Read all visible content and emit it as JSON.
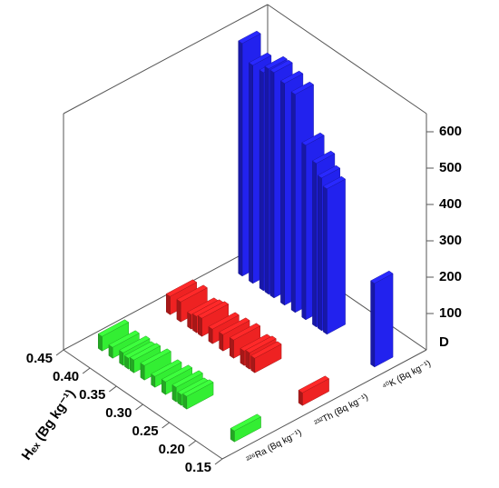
{
  "chart_data": {
    "type": "bar3d",
    "x_label": "Hₑₓ (Bg kg⁻¹)",
    "z_label": "D",
    "x": [
      0.17,
      0.26,
      0.27,
      0.28,
      0.3,
      0.32,
      0.34,
      0.36,
      0.37,
      0.38,
      0.4,
      0.42
    ],
    "xlim": [
      0.15,
      0.45
    ],
    "xticks": [
      0.15,
      {
        "value": 0.2,
        "label": "0.20"
      },
      0.25,
      {
        "value": 0.3,
        "label": "0.30"
      },
      0.35,
      {
        "value": 0.4,
        "label": "0.40"
      },
      0.45
    ],
    "zlim": [
      0,
      650
    ],
    "zticks": [
      100,
      200,
      300,
      400,
      500,
      600
    ],
    "series": [
      {
        "name": "²²⁶Ra (Bq kg⁻¹)",
        "color": "#33ee33",
        "values": [
          30,
          35,
          30,
          40,
          35,
          30,
          40,
          35,
          30,
          35,
          30,
          40
        ]
      },
      {
        "name": "²³²Th (Bq kg⁻¹)",
        "color": "#ee2222",
        "values": [
          35,
          40,
          45,
          40,
          50,
          45,
          40,
          50,
          45,
          40,
          55,
          50
        ]
      },
      {
        "name": "⁴⁰K (Bq kg⁻¹)",
        "color": "#2222ee",
        "values": [
          230,
          400,
          420,
          450,
          480,
          600,
          610,
          620,
          620,
          600,
          600,
          640
        ]
      }
    ]
  }
}
